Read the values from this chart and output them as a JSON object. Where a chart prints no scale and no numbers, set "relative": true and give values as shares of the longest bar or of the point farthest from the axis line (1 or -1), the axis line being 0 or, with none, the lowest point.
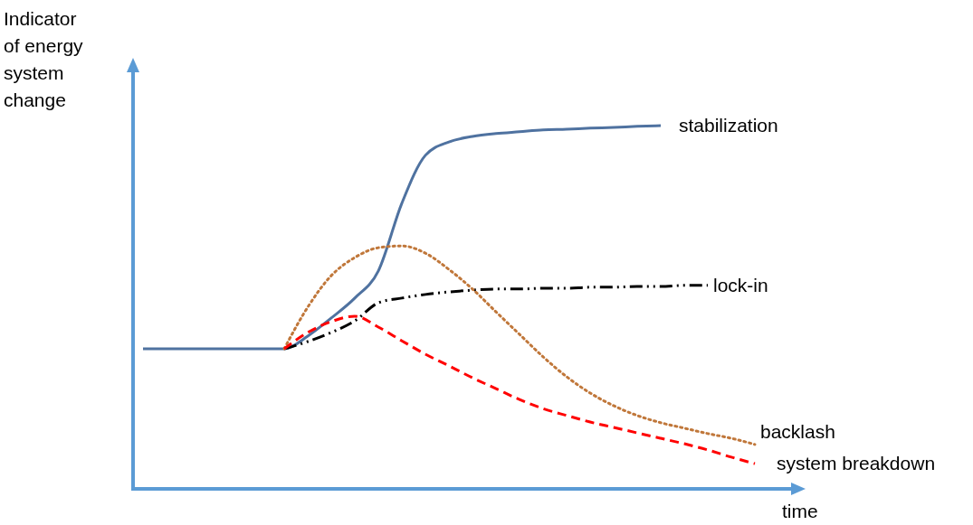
{
  "chart_data": {
    "type": "line",
    "relative": true,
    "ylabel": "Indicator of energy system change",
    "xlabel": "time",
    "categories": [
      null,
      null,
      null,
      null,
      null,
      null,
      null,
      null,
      null,
      null,
      null,
      null,
      null,
      null,
      null,
      null,
      null,
      null,
      null,
      null,
      null,
      null,
      null,
      null,
      null,
      null,
      null
    ],
    "series": [
      {
        "name": "stabilization",
        "color": "#4f72a0",
        "line_style": "solid",
        "values": [
          0.384,
          0.384,
          0.384,
          0.384,
          0.384,
          0.384,
          0.384,
          0.419,
          0.469,
          0.524,
          0.599,
          0.786,
          0.918,
          0.955,
          0.97,
          0.978,
          0.983,
          0.988,
          0.99,
          0.993,
          0.995,
          0.998,
          1,
          null,
          null,
          null,
          null
        ]
      },
      {
        "name": "lock-in",
        "color": "#000000",
        "line_style": "dashdot",
        "values": [
          null,
          null,
          null,
          null,
          null,
          null,
          0.384,
          0.404,
          0.429,
          0.461,
          0.511,
          0.524,
          0.534,
          0.541,
          0.546,
          0.549,
          0.549,
          0.551,
          0.551,
          0.554,
          0.554,
          0.556,
          0.556,
          0.559,
          0.559,
          null,
          null
        ]
      },
      {
        "name": "backlash",
        "color": "#c0773a",
        "line_style": "dotted",
        "values": [
          null,
          null,
          null,
          null,
          null,
          null,
          0.384,
          0.499,
          0.586,
          0.636,
          0.663,
          0.668,
          0.648,
          0.603,
          0.549,
          0.486,
          0.424,
          0.362,
          0.307,
          0.262,
          0.227,
          0.2,
          0.18,
          0.165,
          0.15,
          0.137,
          0.12
        ]
      },
      {
        "name": "system breakdown",
        "color": "#ff0000",
        "line_style": "dashed",
        "values": [
          null,
          null,
          null,
          null,
          null,
          null,
          0.384,
          0.429,
          0.459,
          0.474,
          0.444,
          0.406,
          0.369,
          0.337,
          0.304,
          0.274,
          0.244,
          0.219,
          0.2,
          0.182,
          0.167,
          0.152,
          0.137,
          0.122,
          0.105,
          0.085,
          0.067
        ]
      }
    ]
  }
}
